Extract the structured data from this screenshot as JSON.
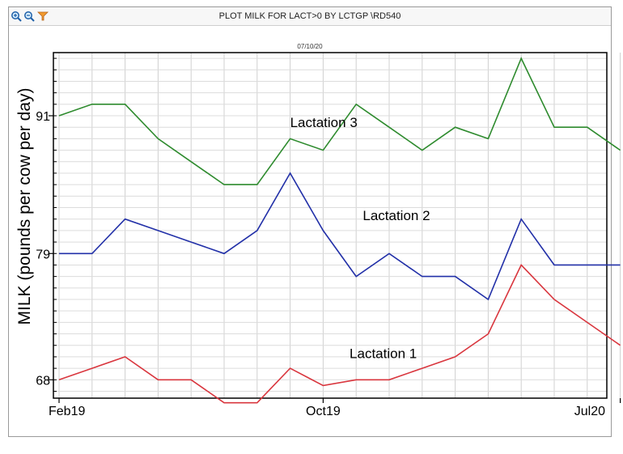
{
  "window": {
    "title": "PLOT MILK FOR LACT>0 BY LCTGP \\RD540",
    "toolbar": [
      {
        "name": "zoom-in-icon"
      },
      {
        "name": "zoom-out-icon"
      },
      {
        "name": "filter-icon"
      }
    ]
  },
  "plot_date": "07/10/20",
  "chart_data": {
    "type": "line",
    "title": "",
    "xlabel": "",
    "ylabel": "MILK (pounds per cow per day)",
    "x_ticks": [
      {
        "index": 0,
        "label": "Feb19"
      },
      {
        "index": 8,
        "label": "Oct19"
      },
      {
        "index": 17,
        "label": "Jul20"
      }
    ],
    "y_ticks": [
      68,
      79,
      91
    ],
    "ylim": [
      66.4,
      96.5
    ],
    "grid": true,
    "legend": "inline labels",
    "colors": {
      "lactation_1": "#d9363e",
      "lactation_2": "#2230a8",
      "lactation_3": "#2e8b2e"
    },
    "series": [
      {
        "name": "Lactation 3",
        "color": "#2e8b2e",
        "label_at": [
          7,
          90.0
        ],
        "values": [
          91,
          92,
          92,
          89,
          87,
          85,
          85,
          89,
          88,
          92,
          90,
          88,
          90,
          89,
          96,
          90,
          90,
          88
        ]
      },
      {
        "name": "Lactation 2",
        "color": "#2230a8",
        "label_at": [
          9.2,
          81.9
        ],
        "values": [
          79,
          79,
          82,
          81,
          80,
          79,
          81,
          86,
          81,
          77,
          79,
          77,
          77,
          75,
          82,
          78,
          78,
          78
        ]
      },
      {
        "name": "Lactation 1",
        "color": "#d9363e",
        "label_at": [
          8.8,
          69.9
        ],
        "values": [
          68,
          69,
          70,
          68,
          68,
          66,
          66,
          69,
          67.5,
          68,
          68,
          69,
          70,
          72,
          78,
          75,
          73,
          71
        ]
      }
    ]
  }
}
